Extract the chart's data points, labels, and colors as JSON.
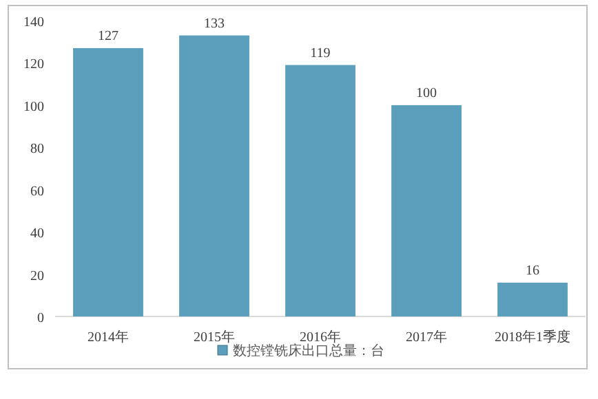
{
  "chart_data": {
    "type": "bar",
    "categories": [
      "2014年",
      "2015年",
      "2016年",
      "2017年",
      "2018年1季度"
    ],
    "series": [
      {
        "name": "数控镗铣床出口总量：台",
        "color": "#5b9fbd",
        "values": [
          127,
          133,
          119,
          100,
          16
        ]
      }
    ],
    "ylim": [
      0,
      140
    ],
    "yticks": [
      0,
      20,
      40,
      60,
      80,
      100,
      120,
      140
    ],
    "data_labels": true,
    "legend": "bottom",
    "grid": false
  }
}
